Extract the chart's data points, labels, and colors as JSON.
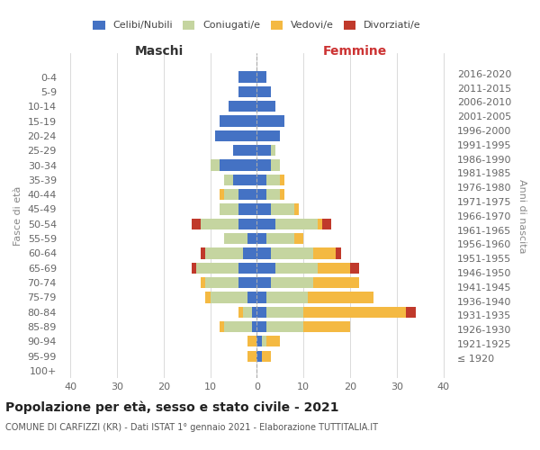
{
  "age_groups": [
    "100+",
    "95-99",
    "90-94",
    "85-89",
    "80-84",
    "75-79",
    "70-74",
    "65-69",
    "60-64",
    "55-59",
    "50-54",
    "45-49",
    "40-44",
    "35-39",
    "30-34",
    "25-29",
    "20-24",
    "15-19",
    "10-14",
    "5-9",
    "0-4"
  ],
  "birth_years": [
    "≤ 1920",
    "1921-1925",
    "1926-1930",
    "1931-1935",
    "1936-1940",
    "1941-1945",
    "1946-1950",
    "1951-1955",
    "1956-1960",
    "1961-1965",
    "1966-1970",
    "1971-1975",
    "1976-1980",
    "1981-1985",
    "1986-1990",
    "1991-1995",
    "1996-2000",
    "2001-2005",
    "2006-2010",
    "2011-2015",
    "2016-2020"
  ],
  "colors": {
    "single": "#4472C4",
    "married": "#C5D5A0",
    "widowed": "#F4B942",
    "divorced": "#C0392B"
  },
  "maschi": {
    "single": [
      0,
      0,
      0,
      1,
      1,
      2,
      4,
      4,
      3,
      2,
      4,
      4,
      4,
      5,
      8,
      5,
      9,
      8,
      6,
      4,
      4
    ],
    "married": [
      0,
      0,
      0,
      6,
      2,
      8,
      7,
      9,
      8,
      5,
      8,
      4,
      3,
      2,
      2,
      0,
      0,
      0,
      0,
      0,
      0
    ],
    "widowed": [
      0,
      2,
      2,
      1,
      1,
      1,
      1,
      0,
      0,
      0,
      0,
      0,
      1,
      0,
      0,
      0,
      0,
      0,
      0,
      0,
      0
    ],
    "divorced": [
      0,
      0,
      0,
      0,
      0,
      0,
      0,
      1,
      1,
      0,
      2,
      0,
      0,
      0,
      0,
      0,
      0,
      0,
      0,
      0,
      0
    ]
  },
  "femmine": {
    "single": [
      0,
      1,
      1,
      2,
      2,
      2,
      3,
      4,
      3,
      2,
      4,
      3,
      2,
      2,
      3,
      3,
      5,
      6,
      4,
      3,
      2
    ],
    "married": [
      0,
      0,
      1,
      8,
      8,
      9,
      9,
      9,
      9,
      6,
      9,
      5,
      3,
      3,
      2,
      1,
      0,
      0,
      0,
      0,
      0
    ],
    "widowed": [
      0,
      2,
      3,
      10,
      22,
      14,
      10,
      7,
      5,
      2,
      1,
      1,
      1,
      1,
      0,
      0,
      0,
      0,
      0,
      0,
      0
    ],
    "divorced": [
      0,
      0,
      0,
      0,
      2,
      0,
      0,
      2,
      1,
      0,
      2,
      0,
      0,
      0,
      0,
      0,
      0,
      0,
      0,
      0,
      0
    ]
  },
  "xlim": 42,
  "title": "Popolazione per età, sesso e stato civile - 2021",
  "subtitle": "COMUNE DI CARFIZZI (KR) - Dati ISTAT 1° gennaio 2021 - Elaborazione TUTTITALIA.IT",
  "ylabel": "Fasce di età",
  "ylabel_right": "Anni di nascita",
  "xlabel_left": "Maschi",
  "xlabel_right": "Femmine",
  "legend_labels": [
    "Celibi/Nubili",
    "Coniugati/e",
    "Vedovi/e",
    "Divorziati/e"
  ],
  "background_color": "#ffffff",
  "grid_color": "#cccccc"
}
